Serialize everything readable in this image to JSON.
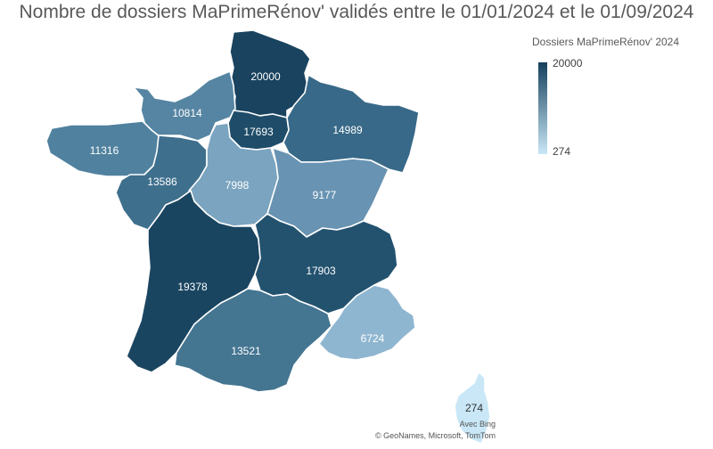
{
  "title": "Nombre de dossiers MaPrimeRénov' validés entre le 01/01/2024 et le 01/09/2024",
  "legend": {
    "title": "Dossiers MaPrimeRénov' 2024",
    "max": "20000",
    "min": "274",
    "max_color": "#15405c",
    "min_color": "#c9e7f7"
  },
  "regions": [
    {
      "id": "hauts-de-france",
      "value": "20000",
      "color": "#19435f"
    },
    {
      "id": "normandie",
      "value": "10814",
      "color": "#5585a2"
    },
    {
      "id": "ile-de-france",
      "value": "17693",
      "color": "#1f4d69"
    },
    {
      "id": "grand-est",
      "value": "14989",
      "color": "#386988"
    },
    {
      "id": "bretagne",
      "value": "11316",
      "color": "#50819f"
    },
    {
      "id": "pays-de-la-loire",
      "value": "13586",
      "color": "#3e6f8d"
    },
    {
      "id": "centre-val-de-loire",
      "value": "7998",
      "color": "#7aa4c0"
    },
    {
      "id": "bourgogne-franche-comte",
      "value": "9177",
      "color": "#6893b2"
    },
    {
      "id": "nouvelle-aquitaine",
      "value": "19378",
      "color": "#1a4561"
    },
    {
      "id": "auvergne-rhone-alpes",
      "value": "17903",
      "color": "#23526f"
    },
    {
      "id": "occitanie",
      "value": "13521",
      "color": "#447591"
    },
    {
      "id": "provence-alpes-cote-d-azur",
      "value": "6724",
      "color": "#8fb6d0"
    },
    {
      "id": "corse",
      "value": "274",
      "color": "#c9e7f7"
    }
  ],
  "attribution": {
    "line1": "Avec Bing",
    "line2": "© GeoNames, Microsoft, TomTom"
  }
}
